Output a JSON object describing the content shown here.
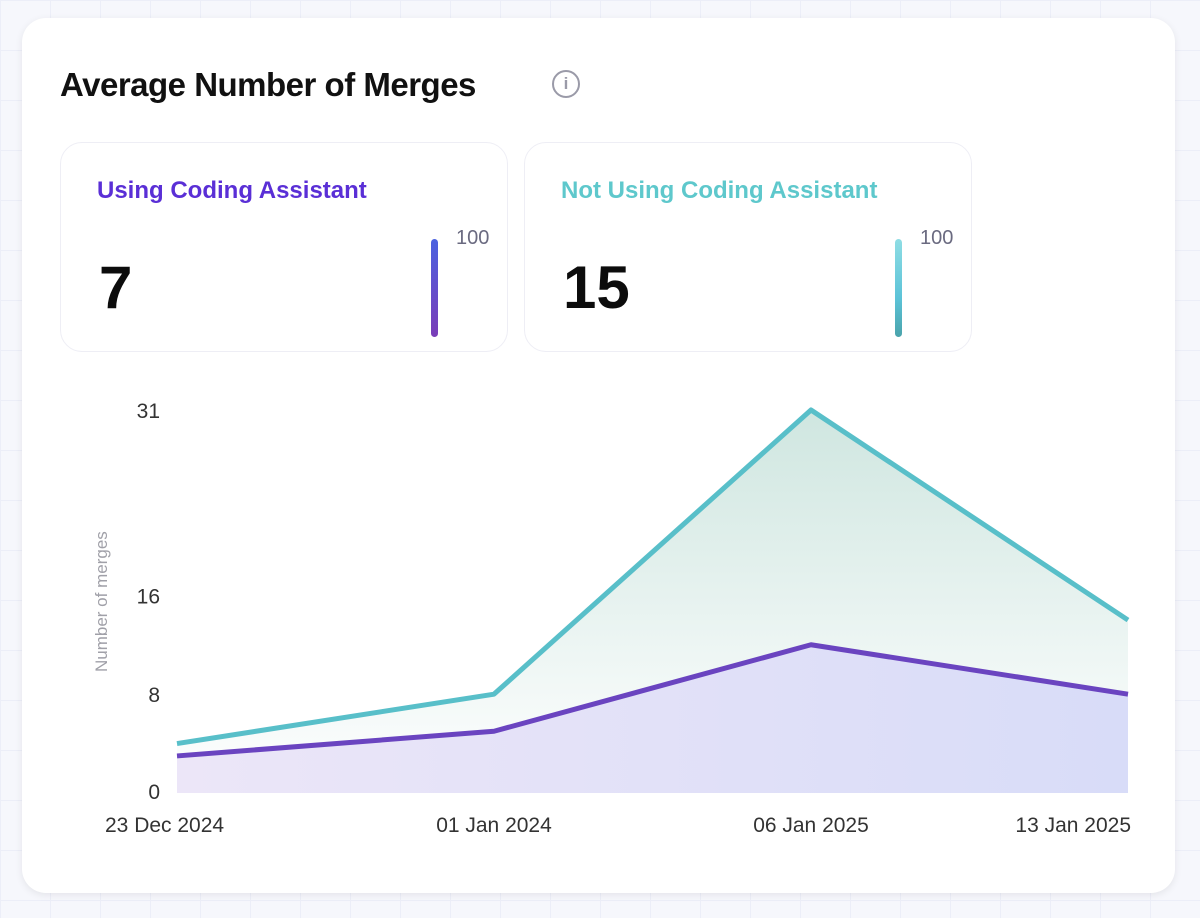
{
  "title": "Average Number of Merges",
  "info_icon": "info-icon",
  "stats": [
    {
      "label": "Using Coding Assistant",
      "value": "7",
      "max": "100",
      "color": "#5a2fd6"
    },
    {
      "label": "Not Using Coding Assistant",
      "value": "15",
      "max": "100",
      "color": "#5ec8cc"
    }
  ],
  "chart_data": {
    "type": "area",
    "categories": [
      "23 Dec 2024",
      "01 Jan 2024",
      "06 Jan 2025",
      "13 Jan 2025"
    ],
    "ylabel": "Number of merges",
    "yticks": [
      "0",
      "8",
      "16",
      "31"
    ],
    "ylim": [
      0,
      31
    ],
    "grid": false,
    "series": [
      {
        "values": [
          4,
          8,
          31,
          14
        ],
        "color": "#58bfc9"
      },
      {
        "values": [
          3,
          5,
          12,
          8
        ],
        "color": "#6a44c0"
      }
    ]
  }
}
